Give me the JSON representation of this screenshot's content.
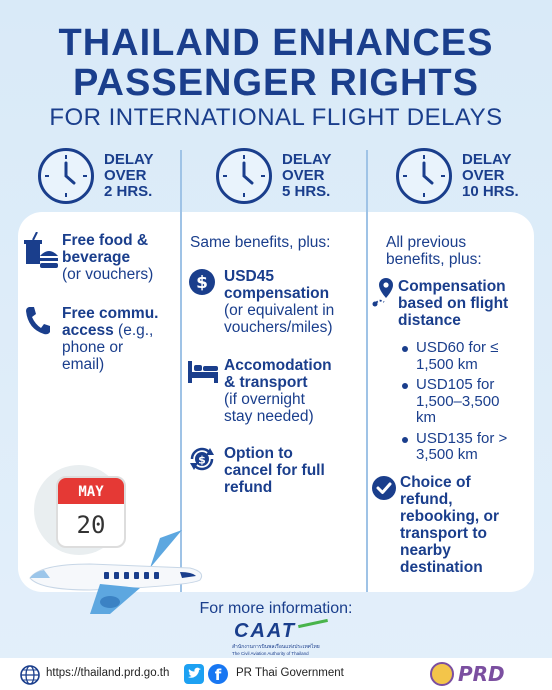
{
  "title": {
    "line1": "THAILAND ENHANCES",
    "line2": "PASSENGER RIGHTS",
    "line3": "FOR INTERNATIONAL FLIGHT DELAYS"
  },
  "columns": [
    {
      "delay_l1": "DELAY",
      "delay_l2": "OVER",
      "delay_l3": "2 HRS."
    },
    {
      "delay_l1": "DELAY",
      "delay_l2": "OVER",
      "delay_l3": "5 HRS."
    },
    {
      "delay_l1": "DELAY",
      "delay_l2": "OVER",
      "delay_l3": "10 HRS."
    }
  ],
  "col1": {
    "food_b1": "Free food &",
    "food_b2": "beverage",
    "food_n": "(or vouchers)",
    "comm_b1": "Free commu.",
    "comm_b2": "access",
    "comm_n1": " (e.g.,",
    "comm_n2": "phone or",
    "comm_n3": "email)"
  },
  "col2": {
    "intro": "Same benefits, plus:",
    "usd_b1": "USD45",
    "usd_b2": "compensation",
    "usd_n1": "(or equivalent in",
    "usd_n2": "vouchers/miles)",
    "acc_b1": "Accomodation",
    "acc_b2": "& transport",
    "acc_n1": "(if overnight",
    "acc_n2": "stay needed)",
    "opt_b1": "Option to",
    "opt_b2": "cancel for full",
    "opt_b3": "refund"
  },
  "col3": {
    "intro1": "All previous",
    "intro2": "benefits, plus:",
    "comp_b1": "Compensation",
    "comp_b2": "based on flight",
    "comp_b3": "distance",
    "b1a": "USD60 for ≤",
    "b1b": "1,500 km",
    "b2a": "USD105 for",
    "b2b": "1,500–3,500",
    "b2c": "km",
    "b3a": "USD135 for >",
    "b3b": "3,500 km",
    "ch_b1": "Choice of",
    "ch_b2": "refund,",
    "ch_b3": "rebooking, or",
    "ch_b4": "transport to",
    "ch_b5": "nearby",
    "ch_b6": "destination"
  },
  "calendar": {
    "month": "MAY",
    "day": "20"
  },
  "more_info": "For more information:",
  "caat": {
    "logo": "CAAT",
    "thai": "สำนักงานการบินพลเรือนแห่งประเทศไทย",
    "eng": "The Civil Aviation Authority of Thailand"
  },
  "footer": {
    "url": "https://thailand.prd.go.th",
    "social": "PR Thai Government",
    "prd": "PRD"
  }
}
